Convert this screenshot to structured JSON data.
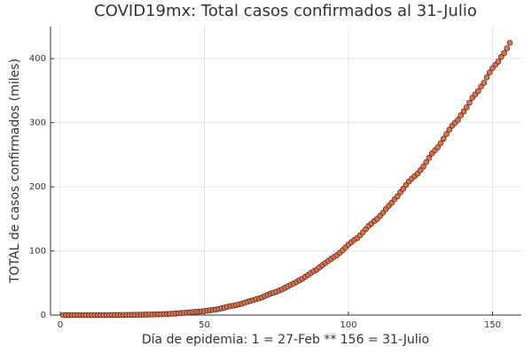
{
  "chart_data": {
    "type": "scatter",
    "title": "COVID19mx: Total casos confirmados al 31-Julio",
    "xlabel": "Día de epidemia: 1 = 27-Feb ** 156 = 31-Julio",
    "ylabel": "TOTAL de casos confirmados (miles)",
    "color": "#e26f46",
    "grid": true,
    "xlim": [
      -3.4,
      160
    ],
    "ylim": [
      0,
      450
    ],
    "xticks": [
      0,
      50,
      100,
      150
    ],
    "yticks": [
      0,
      100,
      200,
      300,
      400
    ],
    "x": [
      1,
      2,
      3,
      4,
      5,
      6,
      7,
      8,
      9,
      10,
      11,
      12,
      13,
      14,
      15,
      16,
      17,
      18,
      19,
      20,
      21,
      22,
      23,
      24,
      25,
      26,
      27,
      28,
      29,
      30,
      31,
      32,
      33,
      34,
      35,
      36,
      37,
      38,
      39,
      40,
      41,
      42,
      43,
      44,
      45,
      46,
      47,
      48,
      49,
      50,
      51,
      52,
      53,
      54,
      55,
      56,
      57,
      58,
      59,
      60,
      61,
      62,
      63,
      64,
      65,
      66,
      67,
      68,
      69,
      70,
      71,
      72,
      73,
      74,
      75,
      76,
      77,
      78,
      79,
      80,
      81,
      82,
      83,
      84,
      85,
      86,
      87,
      88,
      89,
      90,
      91,
      92,
      93,
      94,
      95,
      96,
      97,
      98,
      99,
      100,
      101,
      102,
      103,
      104,
      105,
      106,
      107,
      108,
      109,
      110,
      111,
      112,
      113,
      114,
      115,
      116,
      117,
      118,
      119,
      120,
      121,
      122,
      123,
      124,
      125,
      126,
      127,
      128,
      129,
      130,
      131,
      132,
      133,
      134,
      135,
      136,
      137,
      138,
      139,
      140,
      141,
      142,
      143,
      144,
      145,
      146,
      147,
      148,
      149,
      150,
      151,
      152,
      153,
      154,
      155,
      156
    ],
    "values": [
      0.001,
      0.002,
      0.004,
      0.005,
      0.005,
      0.005,
      0.005,
      0.006,
      0.006,
      0.007,
      0.007,
      0.007,
      0.007,
      0.008,
      0.012,
      0.016,
      0.026,
      0.041,
      0.053,
      0.093,
      0.118,
      0.164,
      0.203,
      0.251,
      0.316,
      0.367,
      0.405,
      0.475,
      0.585,
      0.717,
      0.848,
      0.993,
      1.094,
      1.215,
      1.378,
      1.51,
      1.688,
      1.89,
      2.143,
      2.439,
      2.785,
      3.181,
      3.441,
      3.844,
      4.219,
      4.661,
      5.014,
      5.399,
      5.847,
      6.297,
      6.875,
      7.497,
      8.261,
      8.772,
      9.501,
      10.544,
      11.633,
      12.872,
      13.842,
      14.677,
      15.529,
      16.752,
      17.799,
      19.224,
      20.739,
      22.088,
      23.471,
      24.905,
      26.025,
      27.634,
      29.616,
      31.522,
      33.46,
      35.022,
      36.327,
      38.324,
      40.186,
      42.595,
      45.032,
      47.144,
      49.219,
      51.633,
      54.346,
      56.594,
      59.567,
      62.527,
      65.856,
      68.62,
      71.105,
      74.56,
      78.023,
      81.4,
      84.627,
      87.512,
      90.664,
      93.435,
      97.326,
      101.238,
      105.68,
      110.026,
      113.619,
      117.103,
      120.102,
      124.301,
      129.184,
      133.974,
      139.196,
      142.69,
      146.837,
      150.264,
      154.863,
      159.793,
      165.455,
      170.485,
      175.202,
      180.545,
      185.122,
      191.41,
      196.847,
      202.951,
      208.392,
      212.802,
      216.852,
      220.657,
      226.089,
      231.77,
      238.511,
      245.251,
      252.165,
      256.848,
      261.75,
      268.008,
      275.003,
      282.283,
      289.174,
      295.268,
      299.75,
      304.435,
      311.486,
      317.635,
      324.041,
      331.298,
      338.913,
      344.224,
      349.396,
      356.255,
      362.274,
      370.712,
      378.285,
      385.036,
      390.516,
      395.489,
      402.697,
      408.449,
      416.179,
      424.637
    ]
  }
}
